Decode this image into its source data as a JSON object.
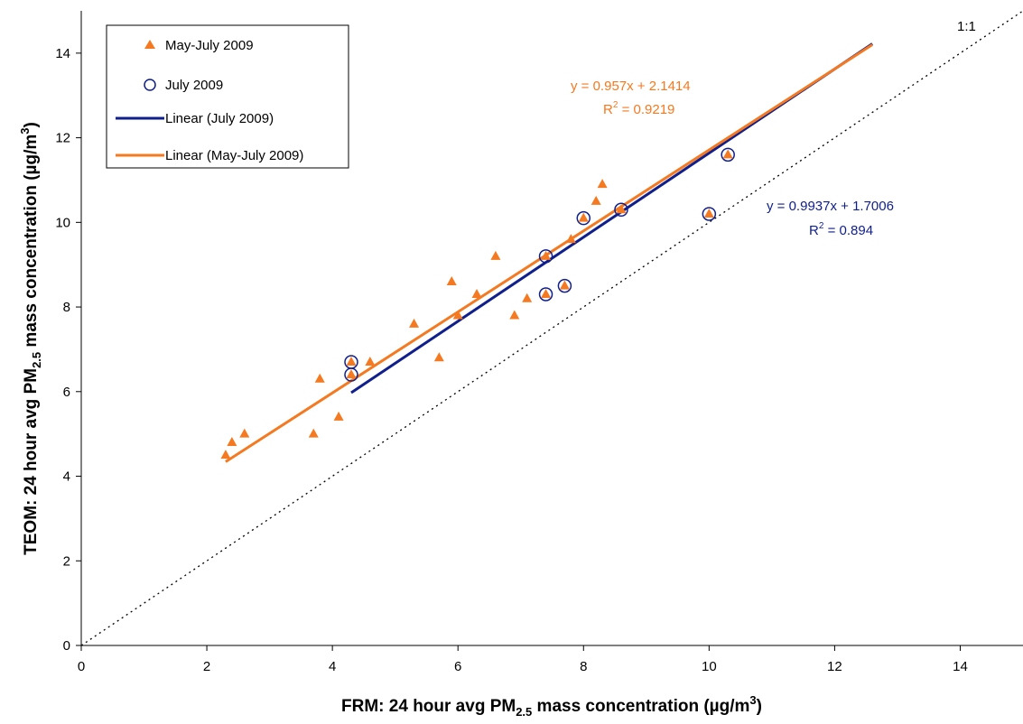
{
  "chart_data": {
    "type": "scatter",
    "title": "",
    "xlabel": "FRM:  24 hour avg PM2.5 mass concentration (µg/m3)",
    "ylabel": "TEOM:  24 hour avg PM2.5 mass concentration (µg/m3)",
    "xlabel_parts": {
      "pre": "FRM:  24 hour avg PM",
      "sub": "2.5",
      "mid": " mass concentration (",
      "mu": "µ",
      "unit": "g/m",
      "sup": "3",
      "post": ")"
    },
    "ylabel_parts": {
      "pre": "TEOM:  24 hour avg PM",
      "sub": "2.5",
      "mid": " mass concentration (",
      "mu": "µ",
      "unit": "g/m",
      "sup": "3",
      "post": ")"
    },
    "xlim": [
      0,
      15
    ],
    "ylim": [
      0,
      15
    ],
    "x_ticks": [
      0,
      2,
      4,
      6,
      8,
      10,
      12,
      14
    ],
    "y_ticks": [
      0,
      2,
      4,
      6,
      8,
      10,
      12,
      14
    ],
    "grid": false,
    "legend_position": "top-left",
    "series": [
      {
        "name": "May-July 2009",
        "marker": "triangle",
        "color": "#F47920",
        "points": [
          [
            2.3,
            4.5
          ],
          [
            2.4,
            4.8
          ],
          [
            2.6,
            5.0
          ],
          [
            3.7,
            5.0
          ],
          [
            3.8,
            6.3
          ],
          [
            4.1,
            5.4
          ],
          [
            4.3,
            6.4
          ],
          [
            4.3,
            6.7
          ],
          [
            4.6,
            6.7
          ],
          [
            5.3,
            7.6
          ],
          [
            5.7,
            6.8
          ],
          [
            5.9,
            8.6
          ],
          [
            6.0,
            7.8
          ],
          [
            6.3,
            8.3
          ],
          [
            6.6,
            9.2
          ],
          [
            6.9,
            7.8
          ],
          [
            7.1,
            8.2
          ],
          [
            7.4,
            8.3
          ],
          [
            7.4,
            9.2
          ],
          [
            7.7,
            8.5
          ],
          [
            7.8,
            9.6
          ],
          [
            8.0,
            10.1
          ],
          [
            8.2,
            10.5
          ],
          [
            8.3,
            10.9
          ],
          [
            8.6,
            10.3
          ],
          [
            10.0,
            10.2
          ],
          [
            10.3,
            11.6
          ]
        ]
      },
      {
        "name": "July 2009",
        "marker": "open-circle",
        "color": "#0F1F8C",
        "points": [
          [
            4.3,
            6.4
          ],
          [
            4.3,
            6.7
          ],
          [
            7.4,
            8.3
          ],
          [
            7.4,
            9.2
          ],
          [
            7.7,
            8.5
          ],
          [
            8.0,
            10.1
          ],
          [
            8.6,
            10.3
          ],
          [
            10.0,
            10.2
          ],
          [
            10.3,
            11.6
          ]
        ]
      }
    ],
    "trendlines": [
      {
        "name": "Linear (July 2009)",
        "color": "#0F1F8C",
        "slope": 0.9937,
        "intercept": 1.7006,
        "x_range": [
          4.3,
          12.6
        ]
      },
      {
        "name": "Linear (May-July 2009)",
        "color": "#F47920",
        "slope": 0.957,
        "intercept": 2.1414,
        "x_range": [
          2.3,
          12.6
        ]
      }
    ],
    "reference_line": {
      "label": "1:1",
      "slope": 1,
      "intercept": 0,
      "x_range": [
        0,
        15
      ]
    },
    "annotations": {
      "orange_eq": "y = 0.957x + 2.1414",
      "orange_r2_label": "R",
      "orange_r2_sup": "2",
      "orange_r2_value": " = 0.9219",
      "blue_eq": "y = 0.9937x + 1.7006",
      "blue_r2_label": "R",
      "blue_r2_sup": "2",
      "blue_r2_value": " = 0.894"
    }
  }
}
